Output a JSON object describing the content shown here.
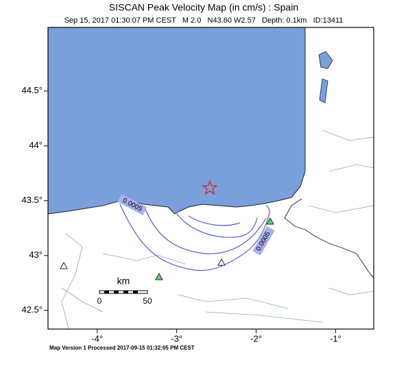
{
  "title": "SISCAN Peak Velocity Map (in cm/s) : Spain",
  "subtitle": "Sep 15, 2017 01:30:07 PM CEST   M 2.0   N43.60 W2.57   Depth: 0.1km   ID:13411",
  "footer": "Map Version 1 Processed 2017-09-15 01:32:05 PM CEST",
  "map": {
    "xlim": [
      -4.62,
      -0.52
    ],
    "ylim": [
      42.33,
      45.08
    ],
    "xticks": [
      {
        "value": -4,
        "label": "-4°"
      },
      {
        "value": -3,
        "label": "-3°"
      },
      {
        "value": -2,
        "label": "-2°"
      },
      {
        "value": -1,
        "label": "-1°"
      }
    ],
    "yticks": [
      {
        "value": 42.5,
        "label": "42.5°"
      },
      {
        "value": 43,
        "label": "43°"
      },
      {
        "value": 43.5,
        "label": "43.5°"
      },
      {
        "value": 44,
        "label": "44°"
      },
      {
        "value": 44.5,
        "label": "44.5°"
      }
    ],
    "contour_labels": [
      "0.0005",
      "0.0005"
    ],
    "scale_bar": {
      "unit": "km",
      "labels": [
        "0",
        "50"
      ]
    }
  }
}
